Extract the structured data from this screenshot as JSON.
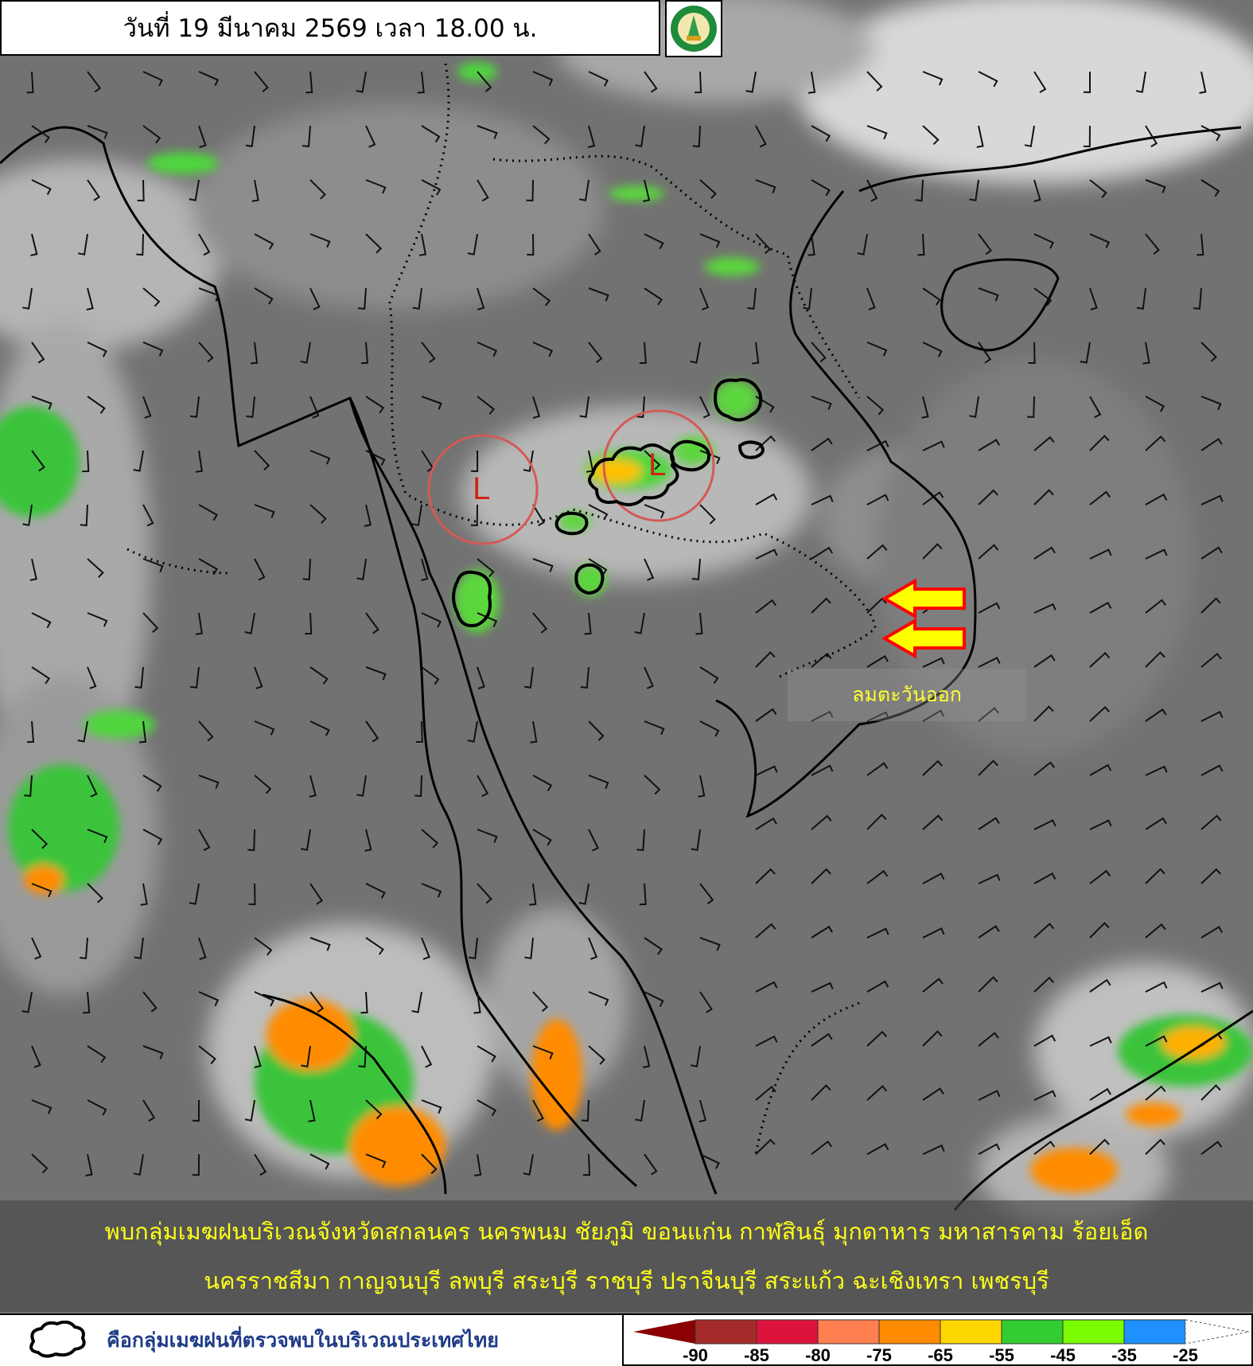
{
  "header": {
    "datetime_title": "วันที่ 19 มีนาคม 2569 เวลา 18.00 น.",
    "logo": "Thai Meteorological Department emblem"
  },
  "map": {
    "type": "infrared satellite image with wind barbs",
    "low_pressure_markers": [
      "L",
      "L"
    ],
    "low_circle_color": "#d45a55",
    "wind_arrow_color": "#ffff00",
    "wind_arrow_outline": "#ff0000",
    "wind_label": "ลมตะวันออก"
  },
  "summary": {
    "line1": "พบกลุ่มเมฆฝนบริเวณจังหวัดสกลนคร นครพนม ชัยภูมิ ขอนแก่น กาฬสินธุ์ มุกดาหาร มหาสารคาม ร้อยเอ็ด",
    "line2": "นครราชสีมา กาญจนบุรี ลพบุรี สระบุรี ราชบุรี ปราจีนบุรี สระแก้ว ฉะเชิงเทรา เพชรบุรี"
  },
  "legend": {
    "cloud_icon": "cloud-outline-icon",
    "cloud_description": "คือกลุ่มเมฆฝนที่ตรวจพบในบริเวณประเทศไทย",
    "colorbar": {
      "colors": [
        "#8b0000",
        "#a52a2a",
        "#dc143c",
        "#ff7f50",
        "#ff8c00",
        "#ffd700",
        "#32cd32",
        "#7cfc00",
        "#1e90ff",
        "#ffffff"
      ],
      "ticks": [
        "-90",
        "-85",
        "-80",
        "-75",
        "-65",
        "-55",
        "-45",
        "-35",
        "-25"
      ]
    }
  }
}
